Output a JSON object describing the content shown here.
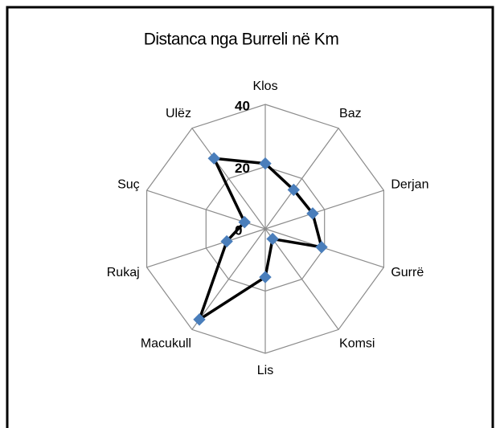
{
  "chart_data": {
    "type": "radar",
    "title": "Distanca nga Burreli në  Km",
    "categories": [
      "Klos",
      "Baz",
      "Derjan",
      "Gurrë",
      "Komsi",
      "Lis",
      "Macukull",
      "Rukaj",
      "Suç",
      "Ulëz"
    ],
    "values": [
      21,
      15.5,
      16,
      19,
      4,
      15.5,
      36,
      13,
      7,
      28
    ],
    "color": "#4a7ebb",
    "line_color": "#000000",
    "ylim": [
      0,
      40
    ],
    "yticks": [
      0,
      20,
      40
    ],
    "grid": true
  }
}
